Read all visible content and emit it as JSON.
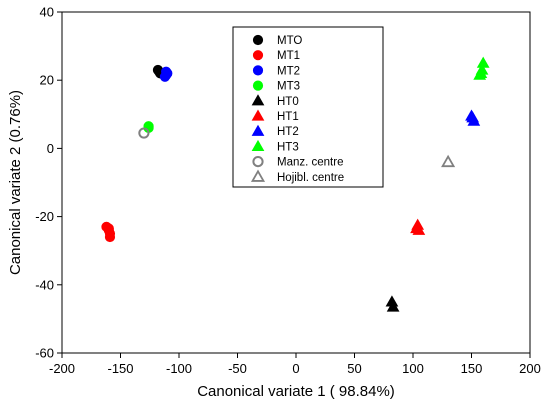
{
  "chart_data": {
    "type": "scatter",
    "title": "",
    "xlabel": "Canonical variate 1 ( 98.84%)",
    "ylabel": "Canonical variate 2 (0.76%)",
    "xlim": [
      -200,
      200
    ],
    "ylim": [
      -60,
      40
    ],
    "xticks": [
      -200,
      -150,
      -100,
      -50,
      0,
      50,
      100,
      150,
      200
    ],
    "yticks": [
      -60,
      -40,
      -20,
      0,
      20,
      40
    ],
    "grid": false,
    "legend_position": "top-center",
    "series": [
      {
        "name": "MTO",
        "marker": "circle",
        "color": "#000000",
        "filled": true,
        "points": [
          [
            -118,
            23
          ],
          [
            -117,
            22.5
          ],
          [
            -116,
            22
          ]
        ]
      },
      {
        "name": "MT1",
        "marker": "circle",
        "color": "#ff0000",
        "filled": true,
        "points": [
          [
            -162,
            -23
          ],
          [
            -160,
            -24
          ],
          [
            -159,
            -25
          ],
          [
            -159,
            -26
          ],
          [
            -160,
            -23.5
          ]
        ]
      },
      {
        "name": "MT2",
        "marker": "circle",
        "color": "#0000ff",
        "filled": true,
        "points": [
          [
            -111,
            22.5
          ],
          [
            -111,
            21.5
          ],
          [
            -112,
            21
          ],
          [
            -110,
            22
          ]
        ]
      },
      {
        "name": "MT3",
        "marker": "circle",
        "color": "#00ff00",
        "filled": true,
        "points": [
          [
            -126,
            6.5
          ],
          [
            -126,
            6
          ]
        ]
      },
      {
        "name": "HT0",
        "marker": "triangle",
        "color": "#000000",
        "filled": true,
        "points": [
          [
            82,
            -45
          ],
          [
            83,
            -46.5
          ]
        ]
      },
      {
        "name": "HT1",
        "marker": "triangle",
        "color": "#ff0000",
        "filled": true,
        "points": [
          [
            104,
            -22.5
          ],
          [
            103,
            -23.5
          ],
          [
            105,
            -24
          ]
        ]
      },
      {
        "name": "HT2",
        "marker": "triangle",
        "color": "#0000ff",
        "filled": true,
        "points": [
          [
            150,
            9.5
          ],
          [
            152,
            8
          ],
          [
            151,
            9
          ]
        ]
      },
      {
        "name": "HT3",
        "marker": "triangle",
        "color": "#00ff00",
        "filled": true,
        "points": [
          [
            160,
            25
          ],
          [
            158,
            22
          ],
          [
            157,
            21.5
          ],
          [
            159,
            23
          ]
        ]
      },
      {
        "name": "Manz. centre",
        "marker": "circle",
        "color": "#808080",
        "filled": false,
        "points": [
          [
            -130,
            4.5
          ]
        ]
      },
      {
        "name": "Hojibl. centre",
        "marker": "triangle",
        "color": "#808080",
        "filled": false,
        "points": [
          [
            130,
            -4
          ]
        ]
      }
    ]
  }
}
